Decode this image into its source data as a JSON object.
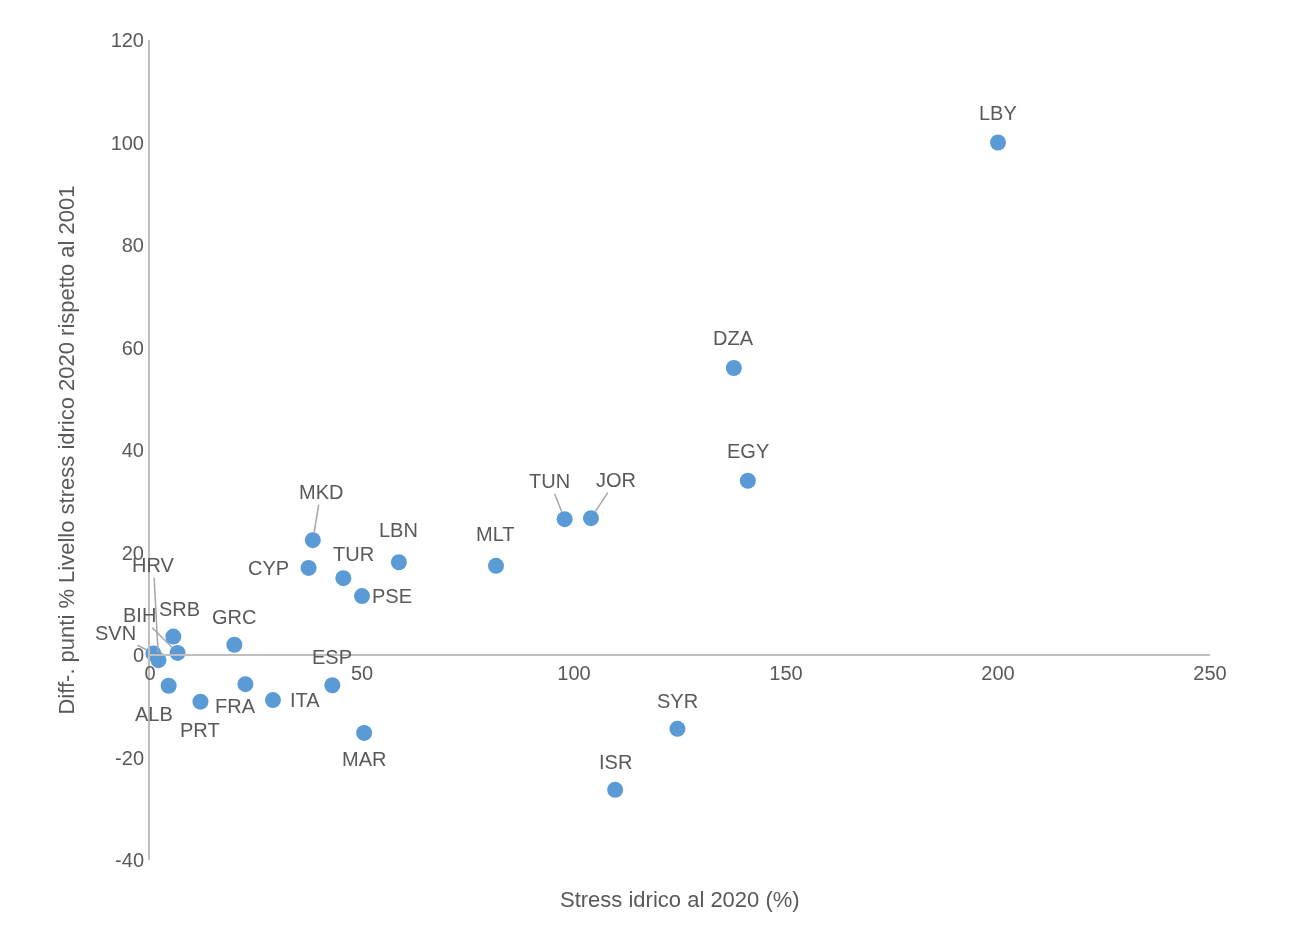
{
  "chart_data": {
    "type": "scatter",
    "xlabel": "Stress idrico al 2020 (%)",
    "ylabel": "Diff-. punti % Livello stress idrico 2020 rispetto al 2001",
    "xlim": [
      0,
      250
    ],
    "xticks": [
      0,
      50,
      100,
      150,
      200,
      250
    ],
    "ylim": [
      -40,
      120
    ],
    "yticks": [
      -40,
      -20,
      0,
      20,
      40,
      60,
      80,
      100,
      120
    ],
    "legend": false,
    "marker": "circle",
    "series": [
      {
        "name": "LBY",
        "color": "#5b9bd5",
        "x": [
          200
        ],
        "values": [
          100
        ]
      },
      {
        "name": "DZA",
        "color": "#5b9bd5",
        "x": [
          137.7
        ],
        "values": [
          56
        ]
      },
      {
        "name": "EGY",
        "color": "#5b9bd5",
        "x": [
          141
        ],
        "values": [
          34
        ]
      },
      {
        "name": "TUN",
        "color": "#5b9bd5",
        "x": [
          97.8
        ],
        "values": [
          26.5
        ]
      },
      {
        "name": "JOR",
        "color": "#5b9bd5",
        "x": [
          104
        ],
        "values": [
          26.7
        ]
      },
      {
        "name": "MLT",
        "color": "#5b9bd5",
        "x": [
          81.6
        ],
        "values": [
          17.4
        ]
      },
      {
        "name": "LBN",
        "color": "#5b9bd5",
        "x": [
          58.7
        ],
        "values": [
          18.1
        ]
      },
      {
        "name": "MKD",
        "color": "#5b9bd5",
        "x": [
          38.4
        ],
        "values": [
          22.4
        ]
      },
      {
        "name": "CYP",
        "color": "#5b9bd5",
        "x": [
          37.4
        ],
        "values": [
          17
        ]
      },
      {
        "name": "TUR",
        "color": "#5b9bd5",
        "x": [
          45.6
        ],
        "values": [
          15
        ]
      },
      {
        "name": "PSE",
        "color": "#5b9bd5",
        "x": [
          50
        ],
        "values": [
          11.5
        ]
      },
      {
        "name": "HRV",
        "color": "#5b9bd5",
        "x": [
          2
        ],
        "values": [
          -1
        ]
      },
      {
        "name": "SRB",
        "color": "#5b9bd5",
        "x": [
          5.5
        ],
        "values": [
          3.6
        ]
      },
      {
        "name": "GRC",
        "color": "#5b9bd5",
        "x": [
          19.9
        ],
        "values": [
          2
        ]
      },
      {
        "name": "BIH",
        "color": "#5b9bd5",
        "x": [
          6.5
        ],
        "values": [
          0.4
        ]
      },
      {
        "name": "SVN",
        "color": "#5b9bd5",
        "x": [
          0.8
        ],
        "values": [
          0.3
        ]
      },
      {
        "name": "FRA",
        "color": "#5b9bd5",
        "x": [
          22.5
        ],
        "values": [
          -5.7
        ]
      },
      {
        "name": "ESP",
        "color": "#5b9bd5",
        "x": [
          43
        ],
        "values": [
          -5.9
        ]
      },
      {
        "name": "ITA",
        "color": "#5b9bd5",
        "x": [
          29
        ],
        "values": [
          -8.8
        ]
      },
      {
        "name": "ALB",
        "color": "#5b9bd5",
        "x": [
          4.4
        ],
        "values": [
          -6
        ]
      },
      {
        "name": "PRT",
        "color": "#5b9bd5",
        "x": [
          11.9
        ],
        "values": [
          -9.1
        ]
      },
      {
        "name": "MAR",
        "color": "#5b9bd5",
        "x": [
          50.5
        ],
        "values": [
          -15.2
        ]
      },
      {
        "name": "SYR",
        "color": "#5b9bd5",
        "x": [
          124.4
        ],
        "values": [
          -14.4
        ]
      },
      {
        "name": "ISR",
        "color": "#5b9bd5",
        "x": [
          109.7
        ],
        "values": [
          -26.3
        ]
      }
    ]
  }
}
